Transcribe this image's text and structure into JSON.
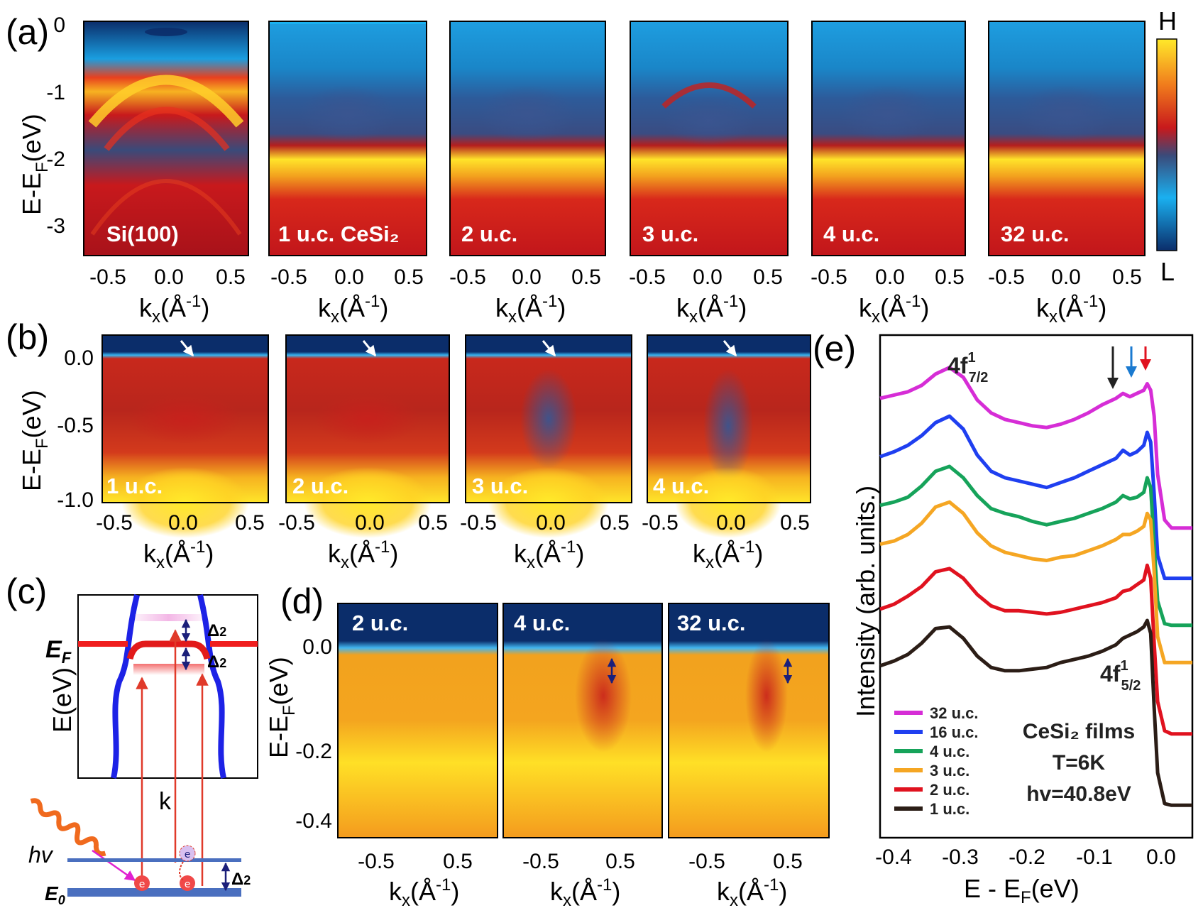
{
  "panel_labels": [
    "(a)",
    "(b)",
    "(c)",
    "(d)",
    "(e)"
  ],
  "panel_a": {
    "ylabel": "E-E",
    "ylabel_sub": "F",
    "ylabel_tail": "(eV)",
    "yticks": [
      "0",
      "-1",
      "-2",
      "-3"
    ],
    "xticks": [
      "-0.5",
      "0.0",
      "0.5"
    ],
    "xlabel": "k",
    "xlabel_sub": "x",
    "xlabel_tail": "(Å",
    "xlabel_sup": "-1",
    "xlabel_end": ")",
    "images": [
      "Si(100)",
      "1 u.c. CeSi₂",
      "2 u.c.",
      "3 u.c.",
      "4 u.c.",
      "32 u.c."
    ],
    "colorbar_high": "H",
    "colorbar_low": "L",
    "colors": [
      "#0b2d6a",
      "#1ab0f0",
      "#3a4a7a",
      "#b0161c",
      "#e8361e",
      "#ffe92a"
    ]
  },
  "panel_b": {
    "ylabel": "E-E",
    "ylabel_sub": "F",
    "ylabel_tail": "(eV)",
    "yticks": [
      "0.0",
      "-0.5",
      "-1.0"
    ],
    "xticks": [
      "-0.5",
      "0.0",
      "0.5"
    ],
    "images": [
      "1 u.c.",
      "2 u.c.",
      "3 u.c.",
      "4 u.c."
    ]
  },
  "panel_c": {
    "ef_label": "E",
    "ef_sub": "F",
    "ylabel": "E(eV)",
    "xlabel": "k",
    "gap_label": "Δ",
    "gap_sub": "2",
    "hv_label": "hv",
    "e0_label": "E",
    "e0_sub": "0",
    "electron": "e"
  },
  "panel_d": {
    "ylabel": "E-E",
    "ylabel_sub": "F",
    "ylabel_tail": "(eV)",
    "yticks": [
      "0.0",
      "-0.2",
      "-0.4"
    ],
    "xticks": [
      "-0.5",
      "0.5"
    ],
    "images": [
      "2 u.c.",
      "4 u.c.",
      "32 u.c."
    ]
  },
  "panel_e": {
    "ylabel": "Intensity (arb. units.)",
    "xlabel": "E - E",
    "xlabel_sub": "F",
    "xlabel_tail": "(eV)",
    "xticks": [
      "-0.4",
      "-0.3",
      "-0.2",
      "-0.1",
      "0.0"
    ],
    "peak_high": "4f",
    "peak_high_sup": "1",
    "peak_high_sub": "7/2",
    "peak_low": "4f",
    "peak_low_sup": "1",
    "peak_low_sub": "5/2",
    "conditions": [
      "CeSi₂ films",
      "T=6K",
      "hv=40.8eV"
    ],
    "legend": [
      "32 u.c.",
      "16 u.c.",
      "4 u.c.",
      "3 u.c.",
      "2 u.c.",
      "1 u.c."
    ],
    "legend_colors": [
      "#d62dd6",
      "#1f3ff0",
      "#16a35a",
      "#f5a623",
      "#e0121f",
      "#2b1d16"
    ],
    "arrow_colors": [
      "#222222",
      "#1a7ad0",
      "#e0121f"
    ]
  },
  "chart_data": {
    "type": "line",
    "xlabel": "E - EF(eV)",
    "ylabel": "Intensity (arb. units.)",
    "xlim": [
      -0.4,
      0.05
    ],
    "x": [
      -0.4,
      -0.38,
      -0.36,
      -0.34,
      -0.32,
      -0.3,
      -0.28,
      -0.26,
      -0.24,
      -0.22,
      -0.2,
      -0.18,
      -0.16,
      -0.14,
      -0.12,
      -0.1,
      -0.08,
      -0.06,
      -0.05,
      -0.04,
      -0.03,
      -0.02,
      -0.015,
      -0.01,
      -0.005,
      0.0,
      0.01,
      0.02,
      0.03,
      0.04,
      0.05
    ],
    "series": [
      {
        "name": "32 u.c.",
        "values": [
          0.955,
          0.965,
          0.975,
          0.995,
          1.03,
          1.05,
          1.02,
          0.95,
          0.91,
          0.89,
          0.88,
          0.87,
          0.865,
          0.875,
          0.89,
          0.91,
          0.935,
          0.955,
          0.97,
          0.96,
          0.97,
          0.98,
          1.0,
          0.98,
          0.9,
          0.72,
          0.58,
          0.555,
          0.555,
          0.555,
          0.555
        ]
      },
      {
        "name": "16 u.c.",
        "values": [
          0.775,
          0.79,
          0.81,
          0.84,
          0.88,
          0.9,
          0.86,
          0.78,
          0.73,
          0.71,
          0.7,
          0.69,
          0.68,
          0.695,
          0.71,
          0.73,
          0.75,
          0.77,
          0.795,
          0.78,
          0.79,
          0.81,
          0.85,
          0.82,
          0.66,
          0.47,
          0.4,
          0.4,
          0.4,
          0.4,
          0.4
        ]
      },
      {
        "name": "4 u.c.",
        "values": [
          0.625,
          0.635,
          0.65,
          0.685,
          0.73,
          0.745,
          0.71,
          0.655,
          0.615,
          0.6,
          0.59,
          0.575,
          0.565,
          0.575,
          0.585,
          0.6,
          0.615,
          0.635,
          0.655,
          0.645,
          0.65,
          0.665,
          0.71,
          0.68,
          0.5,
          0.33,
          0.26,
          0.255,
          0.255,
          0.255,
          0.255
        ]
      },
      {
        "name": "3 u.c.",
        "values": [
          0.505,
          0.515,
          0.535,
          0.57,
          0.62,
          0.635,
          0.6,
          0.54,
          0.5,
          0.48,
          0.47,
          0.46,
          0.455,
          0.465,
          0.47,
          0.485,
          0.5,
          0.52,
          0.535,
          0.535,
          0.545,
          0.56,
          0.6,
          0.58,
          0.42,
          0.22,
          0.14,
          0.14,
          0.14,
          0.14,
          0.14
        ]
      },
      {
        "name": "2 u.c.",
        "values": [
          0.305,
          0.32,
          0.345,
          0.375,
          0.42,
          0.43,
          0.4,
          0.35,
          0.315,
          0.3,
          0.3,
          0.295,
          0.29,
          0.295,
          0.305,
          0.315,
          0.325,
          0.34,
          0.36,
          0.365,
          0.38,
          0.395,
          0.44,
          0.4,
          0.2,
          0.02,
          -0.07,
          -0.08,
          -0.08,
          -0.08,
          -0.08
        ]
      },
      {
        "name": "1 u.c.",
        "values": [
          0.13,
          0.145,
          0.165,
          0.2,
          0.245,
          0.25,
          0.215,
          0.16,
          0.125,
          0.115,
          0.115,
          0.12,
          0.125,
          0.14,
          0.15,
          0.16,
          0.175,
          0.195,
          0.215,
          0.225,
          0.235,
          0.25,
          0.27,
          0.23,
          0.0,
          -0.2,
          -0.295,
          -0.3,
          -0.3,
          -0.3,
          -0.3
        ]
      }
    ]
  }
}
